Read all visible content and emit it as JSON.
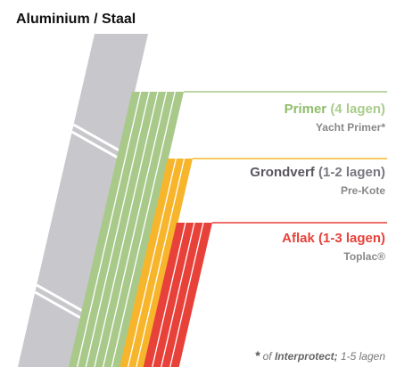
{
  "title": "Aluminium / Staal",
  "layers": [
    {
      "name": "Primer",
      "coats": "(4 lagen)",
      "product": "Yacht Primer*"
    },
    {
      "name": "Grondverf",
      "coats": "(1-2 lagen)",
      "product": "Pre-Kote"
    },
    {
      "name": "Aflak",
      "coats": "(1-3 lagen)",
      "product": "Toplac®"
    }
  ],
  "footnote": {
    "star": "*",
    "text": "of",
    "brand": "Interprotect;",
    "coats": "1-5 lagen"
  }
}
